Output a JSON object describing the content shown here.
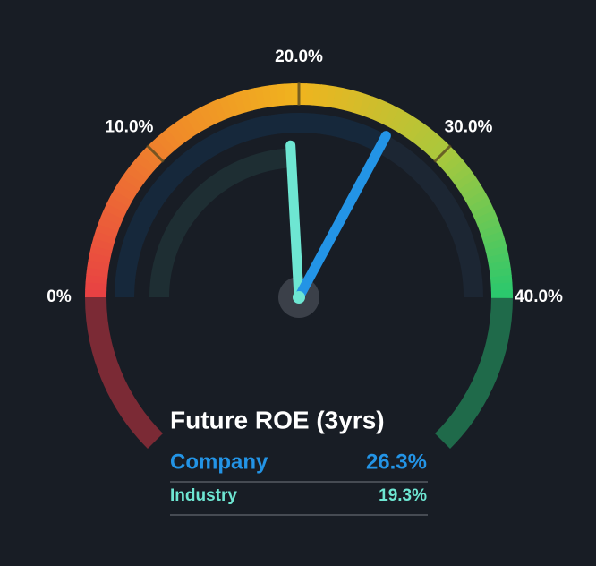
{
  "chart_data": {
    "type": "gauge",
    "title": "Future ROE (3yrs)",
    "xlim": [
      0,
      40
    ],
    "xticks": [
      {
        "value": 0,
        "label": "0%"
      },
      {
        "value": 10,
        "label": "10.0%"
      },
      {
        "value": 20,
        "label": "20.0%"
      },
      {
        "value": 30,
        "label": "30.0%"
      },
      {
        "value": 40,
        "label": "40.0%"
      }
    ],
    "series": [
      {
        "name": "Company",
        "color": "#2394e6",
        "values": [
          26.3
        ],
        "value_labels": [
          "26.3%"
        ]
      },
      {
        "name": "Industry",
        "color": "#6ee6d2",
        "values": [
          19.3
        ],
        "value_labels": [
          "19.3%"
        ]
      }
    ]
  }
}
